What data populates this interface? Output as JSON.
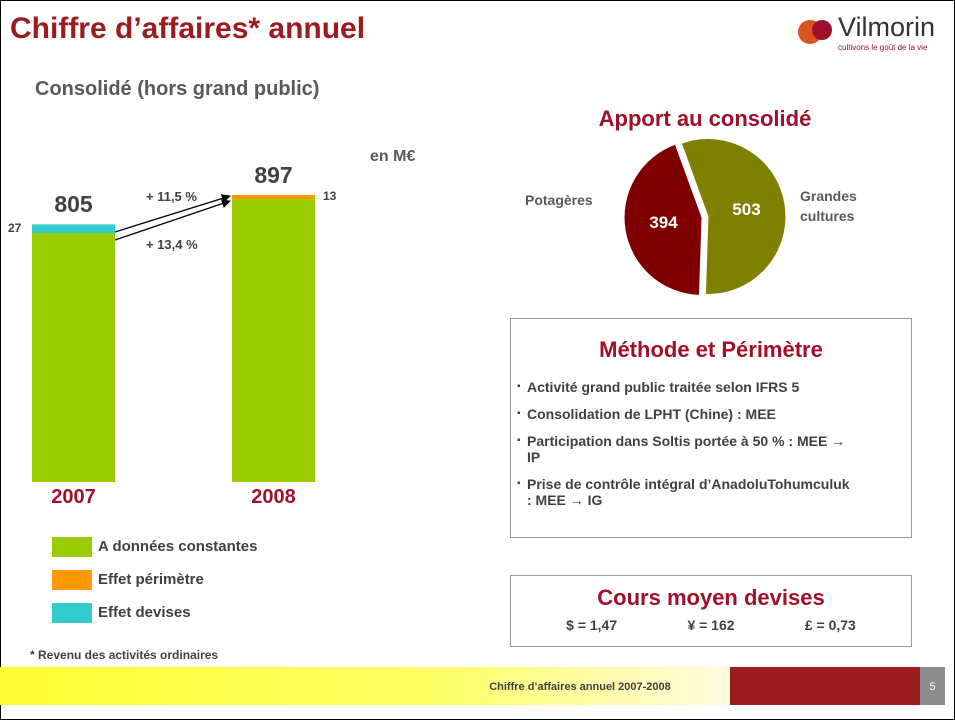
{
  "header": {
    "title": "Chiffre d’affaires* annuel",
    "logo": "Vilmorin",
    "tagline": "cultivons le goût de la vie"
  },
  "subtitle": "Consolidé (hors grand public)",
  "chart_data": [
    {
      "type": "stacked_bar",
      "unit_label": "en M€",
      "categories": [
        "2007",
        "2008"
      ],
      "series": [
        {
          "name": "A données constantes",
          "color": "#99cc00",
          "values": [
            778,
            884
          ]
        },
        {
          "name": "Effet périmètre",
          "color": "#ff9900",
          "values": [
            null,
            13
          ]
        },
        {
          "name": "Effet devises",
          "color": "#33cccc",
          "values": [
            27,
            null
          ]
        }
      ],
      "totals": [
        805,
        897
      ],
      "annotations": [
        "+ 11,5 %",
        "+ 13,4 %"
      ]
    },
    {
      "type": "pie",
      "title": "Apport au consolidé",
      "categories": [
        "Potagères",
        "Grandes cultures"
      ],
      "values": [
        394,
        503
      ],
      "colors": [
        "#7f0000",
        "#808000"
      ]
    }
  ],
  "method": {
    "title": "Méthode et Périmètre",
    "items": [
      "Activité grand public traitée selon IFRS 5",
      "Consolidation de LPHT (Chine) : MEE",
      "Participation dans Soltis portée à 50 % : MEE → IP",
      "Prise de contrôle intégral d’AnadoluTohumculuk : MEE → IG"
    ]
  },
  "currency": {
    "title": "Cours moyen devises",
    "items": [
      "$ = 1,47",
      "¥ = 162",
      "£ = 0,73"
    ]
  },
  "footnote": "* Revenu des activités ordinaires",
  "footer": {
    "text": "Chiffre d’affaires annuel 2007-2008",
    "page": "5"
  }
}
